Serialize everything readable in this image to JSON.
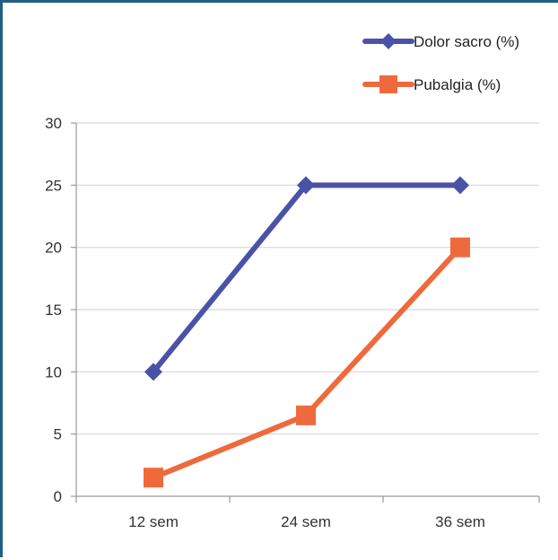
{
  "chart_data": {
    "type": "line",
    "categories": [
      "12 sem",
      "24 sem",
      "36 sem"
    ],
    "series": [
      {
        "name": "Dolor sacro (%)",
        "values": [
          10,
          25,
          25
        ],
        "color": "#4a52a8",
        "marker": "diamond"
      },
      {
        "name": "Pubalgia (%)",
        "values": [
          1.5,
          6.5,
          20
        ],
        "color": "#ee6a3c",
        "marker": "square"
      }
    ],
    "ylim": [
      0,
      30
    ],
    "yticks": [
      "0",
      "5",
      "10",
      "15",
      "20",
      "25",
      "30"
    ],
    "grid": true,
    "legend_position": "top-right",
    "title": "",
    "xlabel": "",
    "ylabel": ""
  }
}
